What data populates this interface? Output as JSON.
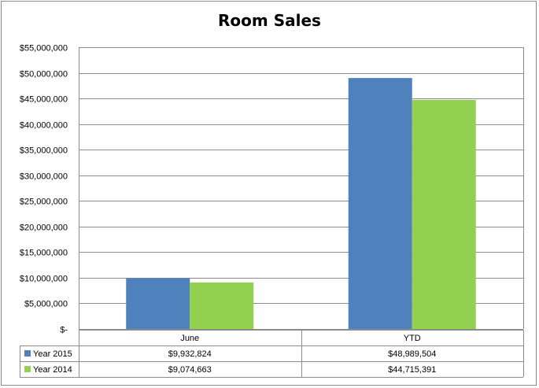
{
  "chart_data": {
    "type": "bar",
    "title": "Room Sales",
    "categories": [
      "June",
      "YTD"
    ],
    "series": [
      {
        "name": "Year 2015",
        "values": [
          9932824,
          48989504
        ],
        "labels": [
          "$9,932,824",
          "$48,989,504"
        ],
        "color": "#4f81bd"
      },
      {
        "name": "Year 2014",
        "values": [
          9074663,
          44715391
        ],
        "labels": [
          "$9,074,663",
          "$44,715,391"
        ],
        "color": "#92d050"
      }
    ],
    "ylim": [
      0,
      55000000
    ],
    "yticks": [
      {
        "value": 0,
        "label": "$-"
      },
      {
        "value": 5000000,
        "label": "$5,000,000"
      },
      {
        "value": 10000000,
        "label": "$10,000,000"
      },
      {
        "value": 15000000,
        "label": "$15,000,000"
      },
      {
        "value": 20000000,
        "label": "$20,000,000"
      },
      {
        "value": 25000000,
        "label": "$25,000,000"
      },
      {
        "value": 30000000,
        "label": "$30,000,000"
      },
      {
        "value": 35000000,
        "label": "$35,000,000"
      },
      {
        "value": 40000000,
        "label": "$40,000,000"
      },
      {
        "value": 45000000,
        "label": "$45,000,000"
      },
      {
        "value": 50000000,
        "label": "$50,000,000"
      },
      {
        "value": 55000000,
        "label": "$55,000,000"
      }
    ],
    "grid": true,
    "legend": "data-table"
  }
}
